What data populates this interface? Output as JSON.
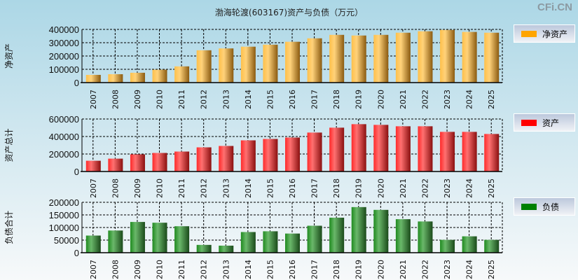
{
  "title": "渤海轮渡(603167)资产与负债（万元）",
  "watermark": "CFi.CN",
  "chart_data": [
    {
      "type": "bar",
      "ylabel": "净资产",
      "legend": "净资产",
      "color": "#ffa500",
      "ylim": [
        0,
        400000
      ],
      "yticks": [
        "0",
        "100000",
        "200000",
        "300000",
        "400000"
      ],
      "categories": [
        "2007",
        "2008",
        "2009",
        "2010",
        "2011",
        "2012",
        "2013",
        "2014",
        "2015",
        "2016",
        "2017",
        "2018",
        "2019",
        "2020",
        "2021",
        "2022",
        "2023",
        "2024",
        "2025"
      ],
      "values": [
        58000,
        63000,
        74000,
        97000,
        122000,
        243000,
        257000,
        270000,
        285000,
        307000,
        333000,
        359000,
        354000,
        359000,
        375000,
        386000,
        396000,
        381000,
        375000
      ]
    },
    {
      "type": "bar",
      "ylabel": "资产总计",
      "legend": "资产",
      "color": "#ff0000",
      "ylim": [
        0,
        600000
      ],
      "yticks": [
        "0",
        "200000",
        "400000",
        "600000"
      ],
      "categories": [
        "2007",
        "2008",
        "2009",
        "2010",
        "2011",
        "2012",
        "2013",
        "2014",
        "2015",
        "2016",
        "2017",
        "2018",
        "2019",
        "2020",
        "2021",
        "2022",
        "2023",
        "2024",
        "2025"
      ],
      "values": [
        123000,
        147000,
        196000,
        212000,
        228000,
        276000,
        292000,
        356000,
        372000,
        388000,
        445000,
        501000,
        541000,
        533000,
        517000,
        517000,
        453000,
        453000,
        429000
      ]
    },
    {
      "type": "bar",
      "ylabel": "负债合计",
      "legend": "负债",
      "color": "#008000",
      "ylim": [
        0,
        200000
      ],
      "yticks": [
        "0",
        "50000",
        "100000",
        "150000",
        "200000"
      ],
      "categories": [
        "2007",
        "2008",
        "2009",
        "2010",
        "2011",
        "2012",
        "2013",
        "2014",
        "2015",
        "2016",
        "2017",
        "2018",
        "2019",
        "2020",
        "2021",
        "2022",
        "2023",
        "2024",
        "2025"
      ],
      "values": [
        68000,
        88000,
        122000,
        119000,
        105000,
        31000,
        28000,
        82000,
        85000,
        76000,
        107000,
        139000,
        181000,
        170000,
        133000,
        124000,
        51000,
        65000,
        51000
      ]
    }
  ]
}
